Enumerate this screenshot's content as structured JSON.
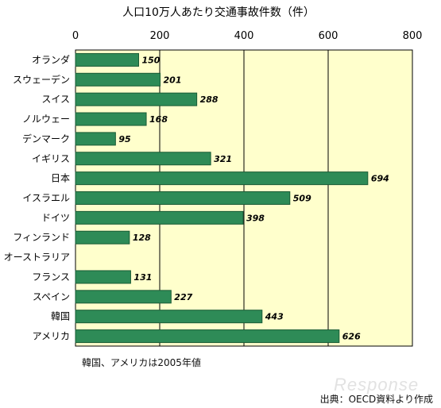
{
  "chart_data": {
    "type": "bar",
    "orientation": "horizontal",
    "title": "人口10万人あたり交通事故件数（件）",
    "categories": [
      "オランダ",
      "スウェーデン",
      "スイス",
      "ノルウェー",
      "デンマーク",
      "イギリス",
      "日本",
      "イスラエル",
      "ドイツ",
      "フィンランド",
      "オーストラリア",
      "フランス",
      "スペイン",
      "韓国",
      "アメリカ"
    ],
    "values": [
      150,
      201,
      288,
      168,
      95,
      321,
      694,
      509,
      398,
      128,
      null,
      131,
      227,
      443,
      626
    ],
    "value_labels": [
      "150",
      "201",
      "288",
      "168",
      "95",
      "321",
      "694",
      "509",
      "398",
      "128",
      "",
      "131",
      "227",
      "443",
      "626"
    ],
    "xlim": [
      0,
      800
    ],
    "xticks": [
      "0",
      "200",
      "400",
      "600",
      "800"
    ],
    "xtick_values": [
      0,
      200,
      400,
      600,
      800
    ],
    "grid": true,
    "colors": {
      "bar": "#2e8b57",
      "bar_edge": "#1a5c36",
      "plot_bg": "#ffffcc"
    }
  },
  "note": "韓国、アメリカは2005年値",
  "source": "出典：OECD資料より作成",
  "watermark": "Response"
}
